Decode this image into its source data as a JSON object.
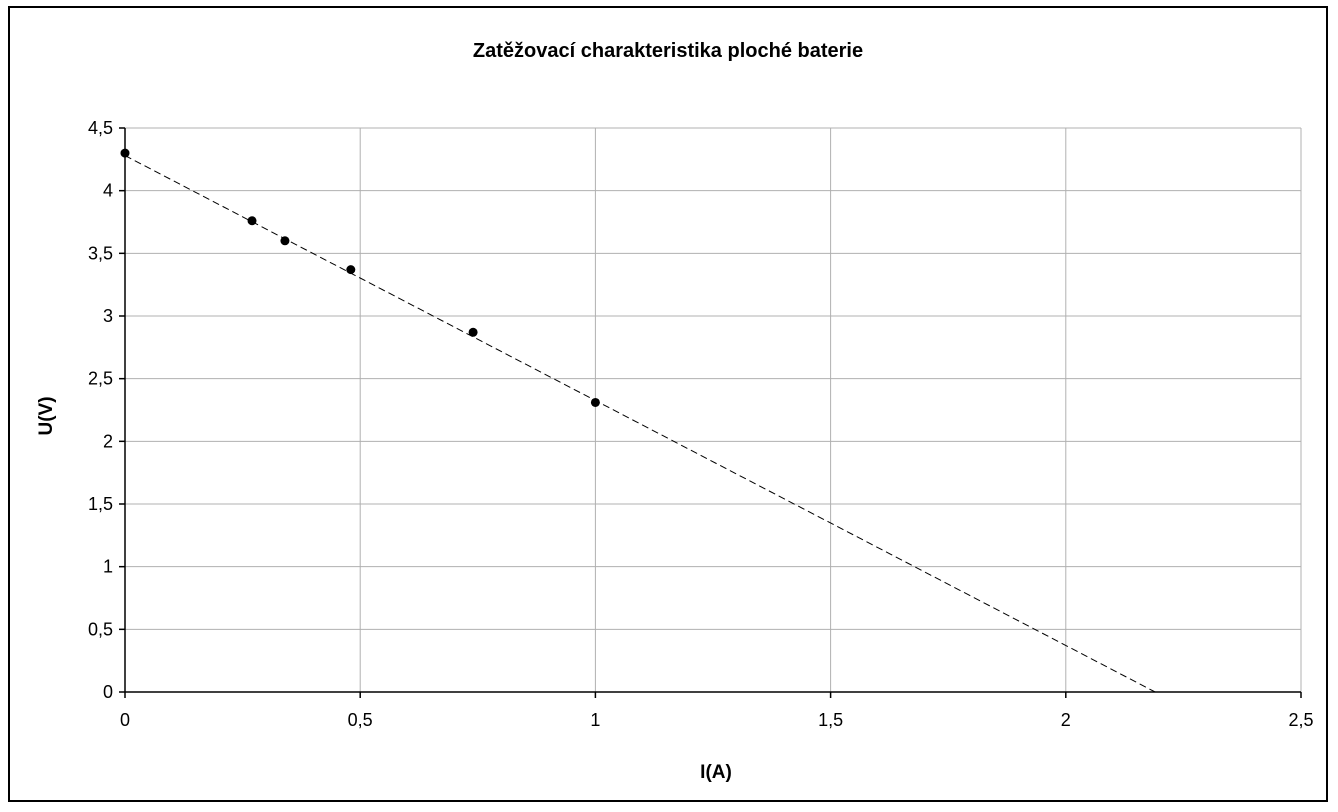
{
  "chart_data": {
    "type": "scatter",
    "title": "Zatěžovací charakteristika ploché baterie",
    "xlabel": "I(A)",
    "ylabel": "U(V)",
    "xlim": [
      0,
      2.5
    ],
    "ylim": [
      0,
      4.5
    ],
    "xticks": [
      0,
      0.5,
      1,
      1.5,
      2,
      2.5
    ],
    "yticks": [
      0,
      0.5,
      1,
      1.5,
      2,
      2.5,
      3,
      3.5,
      4,
      4.5
    ],
    "xtick_labels": [
      "0",
      "0,5",
      "1",
      "1,5",
      "2",
      "2,5"
    ],
    "ytick_labels": [
      "0",
      "0,5",
      "1",
      "1,5",
      "2",
      "2,5",
      "3",
      "3,5",
      "4",
      "4,5"
    ],
    "grid": true,
    "legend": "none",
    "points": [
      {
        "x": 0,
        "y": 4.3
      },
      {
        "x": 0.27,
        "y": 3.76
      },
      {
        "x": 0.34,
        "y": 3.6
      },
      {
        "x": 0.48,
        "y": 3.37
      },
      {
        "x": 0.74,
        "y": 2.87
      },
      {
        "x": 1.0,
        "y": 2.31
      }
    ],
    "trendline": {
      "type": "linear",
      "style": "dashed",
      "from": {
        "x": 0,
        "y": 4.28
      },
      "to": {
        "x": 2.19,
        "y": 0
      }
    },
    "marker_color": "#000000",
    "grid_color": "#b0b0b0"
  }
}
